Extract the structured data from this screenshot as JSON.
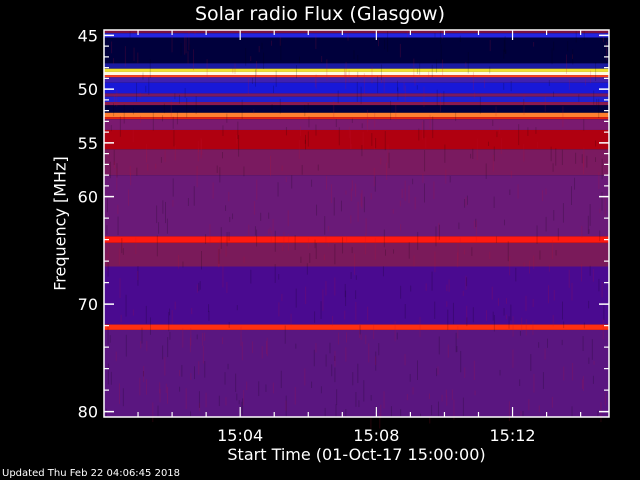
{
  "chart_data": {
    "type": "heatmap",
    "title": "Solar radio Flux (Glasgow)",
    "xlabel": "Start Time (01-Oct-17 15:00:00)",
    "ylabel": "Frequency [MHz]",
    "x_start": "15:00",
    "x_end": "15:14:50",
    "x_ticks": [
      "15:04",
      "15:08",
      "15:12"
    ],
    "x_minor_tick_interval_minutes": 1,
    "ylim": [
      44.5,
      80.5
    ],
    "y_inverted": true,
    "y_ticks": [
      45,
      50,
      55,
      60,
      70,
      80
    ],
    "y_minor_ticks": [
      46,
      47,
      48,
      49,
      51,
      52,
      53,
      54,
      56,
      57,
      58,
      59,
      62,
      64,
      66,
      68,
      72,
      74,
      76,
      78
    ],
    "bands": [
      {
        "f0": 44.5,
        "f1": 44.8,
        "color": "#7a1040"
      },
      {
        "f0": 44.8,
        "f1": 45.2,
        "color": "#2424e0"
      },
      {
        "f0": 45.2,
        "f1": 47.6,
        "color": "#00003c"
      },
      {
        "f0": 47.6,
        "f1": 48.1,
        "color": "#1a1aa0"
      },
      {
        "f0": 48.1,
        "f1": 48.4,
        "color": "#f0e030"
      },
      {
        "f0": 48.4,
        "f1": 48.7,
        "color": "#fff8e0"
      },
      {
        "f0": 48.7,
        "f1": 48.9,
        "color": "#ff4020"
      },
      {
        "f0": 48.9,
        "f1": 49.4,
        "color": "#4020b0"
      },
      {
        "f0": 49.4,
        "f1": 50.4,
        "color": "#1818d8"
      },
      {
        "f0": 50.4,
        "f1": 50.7,
        "color": "#7a1a60"
      },
      {
        "f0": 50.7,
        "f1": 51.2,
        "color": "#2020d0"
      },
      {
        "f0": 51.2,
        "f1": 51.5,
        "color": "#8a1a50"
      },
      {
        "f0": 51.5,
        "f1": 52.2,
        "color": "#000040"
      },
      {
        "f0": 52.2,
        "f1": 52.6,
        "color": "#ff8030"
      },
      {
        "f0": 52.6,
        "f1": 52.8,
        "color": "#e02010"
      },
      {
        "f0": 52.8,
        "f1": 53.8,
        "color": "#7a1a70"
      },
      {
        "f0": 53.8,
        "f1": 55.6,
        "color": "#b00010"
      },
      {
        "f0": 55.6,
        "f1": 58.0,
        "color": "#7a1a60"
      },
      {
        "f0": 58.0,
        "f1": 63.7,
        "color": "#6a1a78"
      },
      {
        "f0": 63.7,
        "f1": 64.3,
        "color": "#ff1a10"
      },
      {
        "f0": 64.3,
        "f1": 66.5,
        "color": "#7a1a5a"
      },
      {
        "f0": 66.5,
        "f1": 71.9,
        "color": "#4a0a90"
      },
      {
        "f0": 71.9,
        "f1": 72.4,
        "color": "#ff3010"
      },
      {
        "f0": 72.4,
        "f1": 80.5,
        "color": "#5a1680"
      }
    ],
    "colors": {
      "background": "#000000",
      "axes": "#ffffff",
      "text": "#ffffff"
    }
  },
  "footer": {
    "updated": "Updated Thu Feb 22 04:06:45 2018"
  }
}
